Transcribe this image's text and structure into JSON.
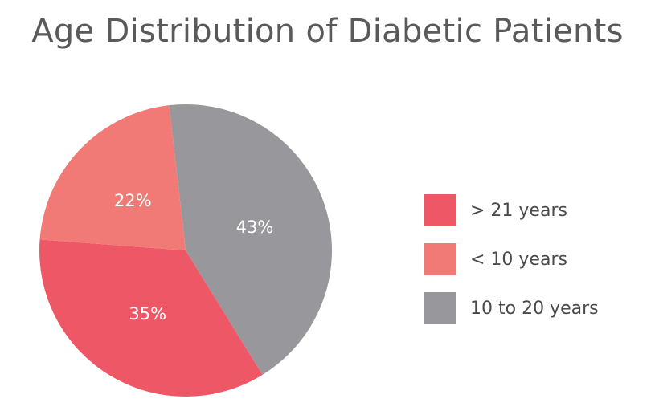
{
  "chart_data": {
    "type": "pie",
    "title": "Age Distribution of Diabetic Patients",
    "slices": [
      {
        "label": "10 to 20 years",
        "value": 43,
        "display": "43%",
        "color": "#98989c"
      },
      {
        "label": "> 21 years",
        "value": 35,
        "display": "35%",
        "color": "#ee5866"
      },
      {
        "label": "< 10 years",
        "value": 22,
        "display": "22%",
        "color": "#f27a76"
      }
    ],
    "legend_order": [
      "> 21 years",
      "< 10 years",
      "10 to 20 years"
    ],
    "legend_position": "right"
  }
}
